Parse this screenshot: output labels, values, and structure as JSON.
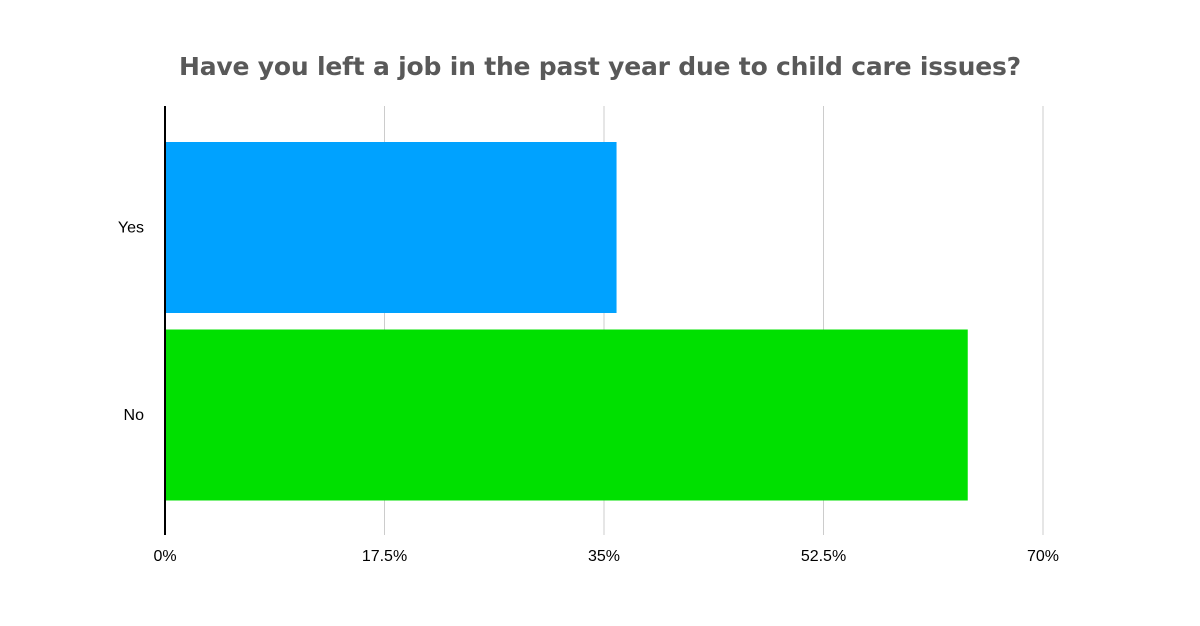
{
  "chart_data": {
    "type": "bar",
    "orientation": "horizontal",
    "title": "Have you left a job in the past year due to child care issues?",
    "categories": [
      "Yes",
      "No"
    ],
    "values": [
      36,
      64
    ],
    "colors": [
      "#00a2ff",
      "#00e000"
    ],
    "xlim": [
      0,
      70
    ],
    "x_ticks": [
      "0%",
      "17.5%",
      "35%",
      "52.5%",
      "70%"
    ],
    "x_tick_values": [
      0,
      17.5,
      35,
      52.5,
      70
    ],
    "grid": "vertical",
    "legend": "none"
  }
}
